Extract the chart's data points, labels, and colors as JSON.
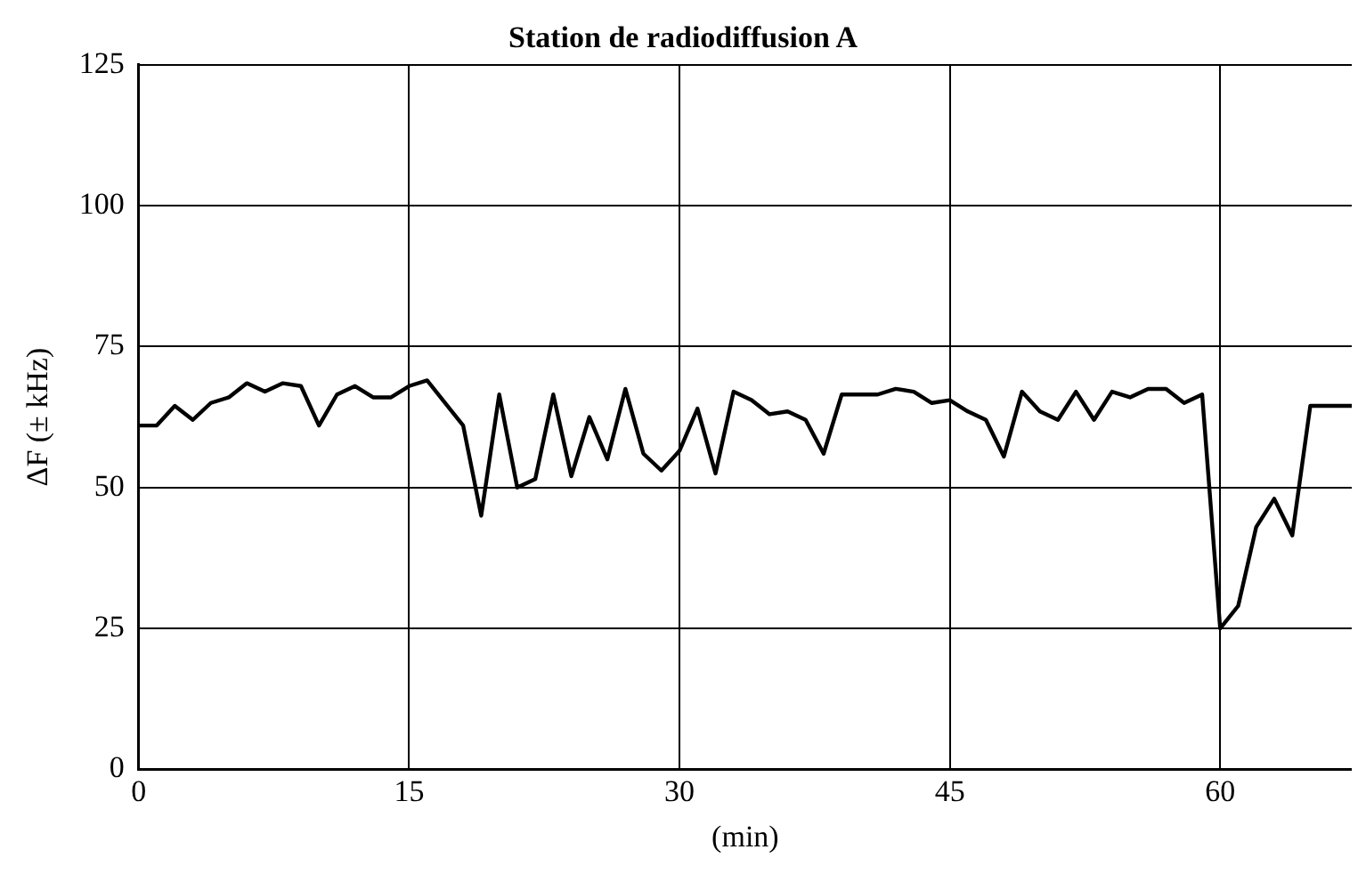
{
  "chart_data": {
    "type": "line",
    "title": "Station de radiodiffusion A",
    "xlabel": "(min)",
    "ylabel": "ΔF (± kHz)",
    "x": [
      0,
      1,
      2,
      3,
      4,
      5,
      6,
      7,
      8,
      9,
      10,
      11,
      12,
      13,
      14,
      15,
      16,
      18,
      19,
      20,
      21,
      22,
      23,
      24,
      25,
      26,
      27,
      28,
      29,
      30,
      31,
      32,
      33,
      34,
      35,
      36,
      37,
      38,
      39,
      41,
      42,
      43,
      44,
      45,
      46,
      47,
      48,
      49,
      50,
      51,
      52,
      53,
      54,
      55,
      56,
      57,
      58,
      59,
      60,
      61,
      62,
      63,
      64,
      65,
      67.3
    ],
    "series": [
      {
        "color": "#000000",
        "values": [
          61,
          61,
          64.5,
          62,
          65,
          66,
          68.5,
          67,
          68.5,
          68,
          61,
          66.5,
          68,
          66,
          66,
          68,
          69,
          61,
          45,
          66.5,
          50,
          51.5,
          66.5,
          52,
          62.5,
          55,
          67.5,
          56,
          53,
          56.5,
          64,
          52.5,
          67,
          65.5,
          63,
          63.5,
          62,
          56,
          66.5,
          66.5,
          67.5,
          67,
          65,
          65.5,
          63.5,
          62,
          55.5,
          67,
          63.5,
          62,
          67,
          62,
          67,
          66,
          67.5,
          67.5,
          65,
          66.5,
          25,
          29,
          43,
          48,
          41.5,
          64.5,
          64.5
        ]
      }
    ],
    "xlim": [
      0,
      67.3
    ],
    "xticks": [
      0,
      15,
      30,
      45,
      60
    ],
    "ylim": [
      0,
      125
    ],
    "yticks": [
      0,
      25,
      50,
      75,
      100,
      125
    ],
    "grid": true,
    "legend": false,
    "marker": "none",
    "line_style": "solid"
  }
}
